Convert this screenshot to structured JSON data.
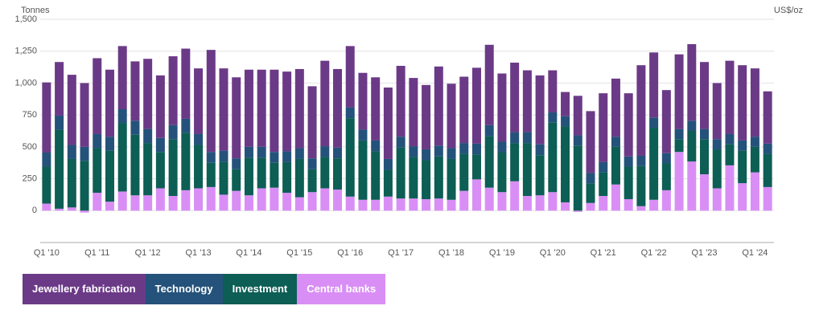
{
  "chart_data": {
    "type": "bar",
    "stacked": true,
    "y_label": "Tonnes",
    "y2_label": "US$/oz",
    "categories": [
      "Q1 '10",
      null,
      null,
      null,
      "Q1 '11",
      null,
      null,
      null,
      "Q1 '12",
      null,
      null,
      null,
      "Q1 '13",
      null,
      null,
      null,
      "Q1 '14",
      null,
      null,
      null,
      "Q1 '15",
      null,
      null,
      null,
      "Q1 '16",
      null,
      null,
      null,
      "Q1 '17",
      null,
      null,
      null,
      "Q1 '18",
      null,
      null,
      null,
      "Q1 '19",
      null,
      null,
      null,
      "Q1 '20",
      null,
      null,
      null,
      "Q1 '21",
      null,
      null,
      null,
      "Q1 '22",
      null,
      null,
      null,
      "Q1 '23",
      null,
      null,
      null,
      "Q1 '24",
      null
    ],
    "series": [
      {
        "name": "Jewellery fabrication",
        "color": "#6b3a87",
        "values": [
          550,
          420,
          550,
          500,
          595,
          525,
          495,
          465,
          550,
          490,
          540,
          550,
          515,
          800,
          645,
          635,
          605,
          605,
          645,
          625,
          620,
          565,
          670,
          615,
          480,
          445,
          495,
          560,
          555,
          535,
          505,
          620,
          505,
          520,
          595,
          630,
          535,
          545,
          485,
          540,
          330,
          190,
          310,
          485,
          540,
          455,
          495,
          710,
          510,
          495,
          585,
          600,
          525,
          440,
          575,
          590,
          535,
          410
        ]
      },
      {
        "name": "Technology",
        "color": "#24527a",
        "values": [
          110,
          110,
          110,
          110,
          110,
          110,
          110,
          110,
          110,
          110,
          110,
          110,
          85,
          85,
          85,
          85,
          85,
          85,
          85,
          85,
          85,
          85,
          85,
          85,
          85,
          85,
          85,
          85,
          85,
          85,
          85,
          85,
          85,
          85,
          85,
          85,
          85,
          85,
          85,
          85,
          80,
          80,
          80,
          80,
          80,
          80,
          80,
          80,
          80,
          80,
          80,
          80,
          80,
          80,
          80,
          80,
          80,
          80
        ]
      },
      {
        "name": "Investment",
        "color": "#0d5e55",
        "values": [
          290,
          620,
          380,
          390,
          350,
          400,
          535,
          475,
          410,
          285,
          445,
          450,
          340,
          190,
          260,
          170,
          295,
          240,
          195,
          240,
          300,
          180,
          245,
          245,
          615,
          465,
          380,
          210,
          400,
          325,
          305,
          330,
          320,
          290,
          195,
          405,
          310,
          300,
          415,
          315,
          545,
          595,
          510,
          155,
          185,
          295,
          255,
          315,
          565,
          210,
          100,
          240,
          275,
          305,
          165,
          255,
          200,
          260
        ]
      },
      {
        "name": "Central banks",
        "color": "#d98ef5",
        "values": [
          55,
          15,
          25,
          -15,
          140,
          70,
          150,
          120,
          120,
          175,
          115,
          160,
          175,
          185,
          125,
          155,
          120,
          175,
          180,
          140,
          105,
          145,
          175,
          165,
          110,
          85,
          85,
          110,
          95,
          95,
          90,
          95,
          85,
          155,
          245,
          180,
          145,
          230,
          115,
          120,
          145,
          65,
          -10,
          60,
          115,
          205,
          90,
          35,
          85,
          160,
          460,
          385,
          285,
          175,
          355,
          215,
          300,
          185
        ]
      }
    ],
    "ylim": [
      -250,
      1500
    ],
    "yticks": [
      0,
      250,
      500,
      750,
      {
        "value": 1000,
        "label": "1,000"
      },
      {
        "value": 1250,
        "label": "1,250"
      },
      {
        "value": 1500,
        "label": "1,500"
      }
    ],
    "grid": true,
    "legend": "bottom"
  }
}
